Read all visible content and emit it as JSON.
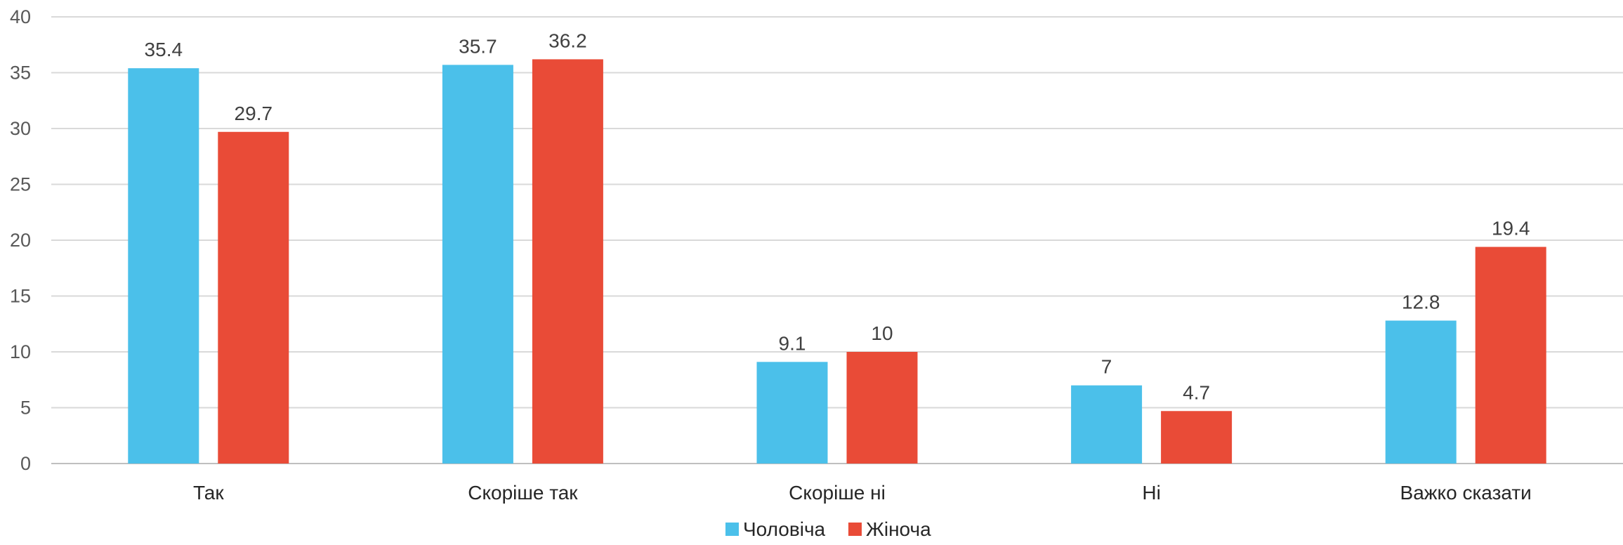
{
  "chart_data": {
    "type": "bar",
    "title": "",
    "xlabel": "",
    "ylabel": "",
    "categories": [
      "Так",
      "Скоріше так",
      "Скоріше ні",
      "Ні",
      "Важко сказати"
    ],
    "series": [
      {
        "name": "Чоловіча",
        "color": "#4bc0ea",
        "values": [
          35.4,
          35.7,
          9.1,
          7,
          12.8
        ]
      },
      {
        "name": "Жіноча",
        "color": "#e94b37",
        "values": [
          29.7,
          36.2,
          10,
          4.7,
          19.4
        ]
      }
    ],
    "ylim": [
      0,
      40
    ],
    "yticks": [
      0,
      5,
      10,
      15,
      20,
      25,
      30,
      35,
      40
    ],
    "grid": true,
    "legend_position": "bottom-center",
    "data_labels": true
  }
}
